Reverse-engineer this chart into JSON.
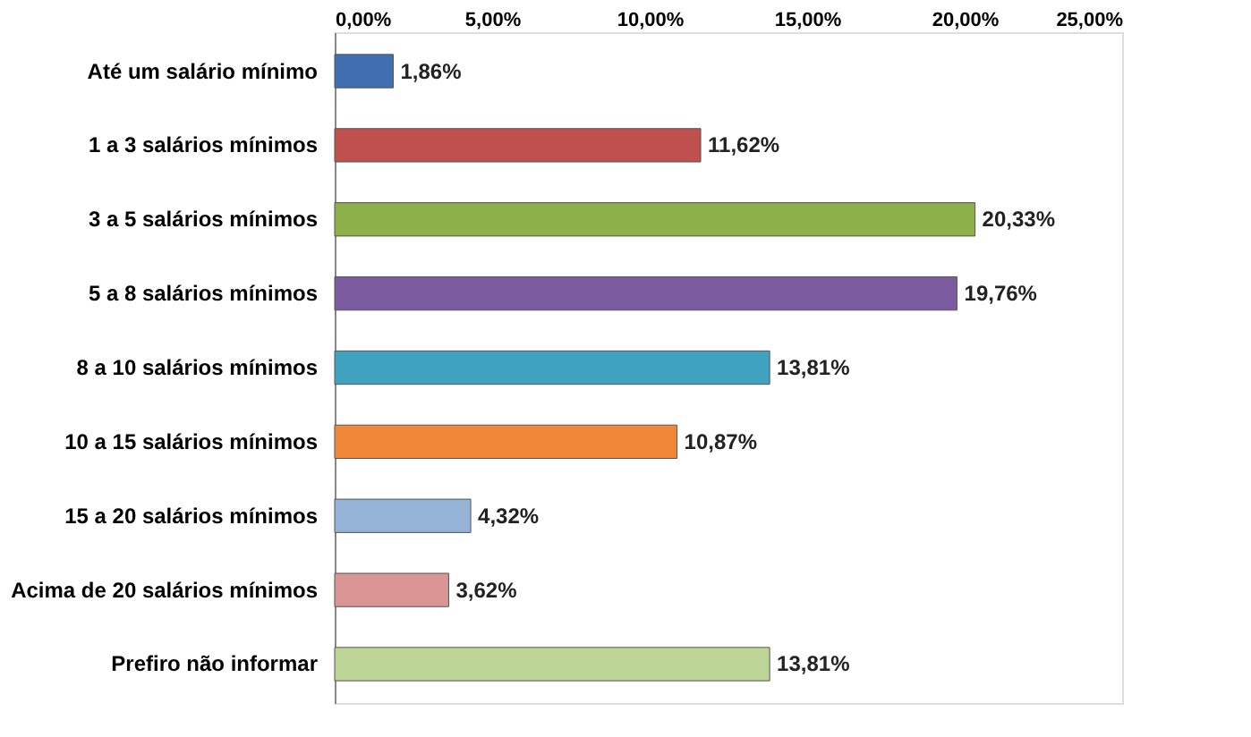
{
  "chart_data": {
    "type": "bar",
    "orientation": "horizontal",
    "categories": [
      "Até um salário mínimo",
      "1 a 3 salários mínimos",
      "3 a 5 salários mínimos",
      "5 a 8 salários mínimos",
      "8 a 10 salários mínimos",
      "10 a 15 salários mínimos",
      "15 a 20 salários mínimos",
      "Acima de 20 salários mínimos",
      "Prefiro não informar"
    ],
    "values": [
      1.86,
      11.62,
      20.33,
      19.76,
      13.81,
      10.87,
      4.32,
      3.62,
      13.81
    ],
    "colors": [
      "#3f6fb0",
      "#c0504d",
      "#8db04a",
      "#7a5c9e",
      "#3fa3bf",
      "#f0883a",
      "#95b3d7",
      "#d99694",
      "#bdd497"
    ],
    "value_labels": [
      "1,86%",
      "11,62%",
      "20,33%",
      "19,76%",
      "13,81%",
      "10,87%",
      "4,32%",
      "3,62%",
      "13,81%"
    ],
    "xlim": [
      0,
      25
    ],
    "xticks": [
      {
        "value": 0,
        "label": "0,00%"
      },
      {
        "value": 5,
        "label": "5,00%"
      },
      {
        "value": 10,
        "label": "10,00%"
      },
      {
        "value": 15,
        "label": "15,00%"
      },
      {
        "value": 20,
        "label": "20,00%"
      },
      {
        "value": 25,
        "label": "25,00%"
      }
    ],
    "grid": false
  }
}
